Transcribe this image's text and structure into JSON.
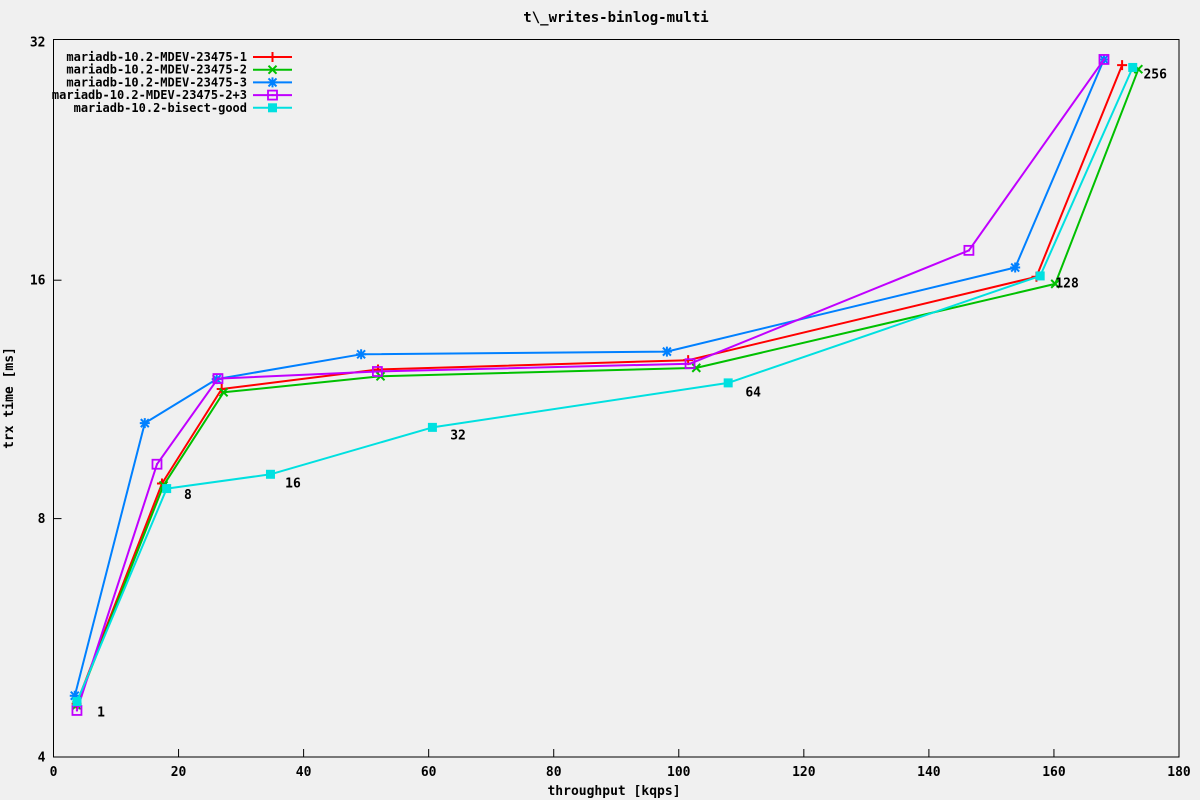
{
  "chart_data": {
    "type": "line",
    "title": "t\\_writes-binlog-multi",
    "xlabel": "throughput [kqps]",
    "ylabel": "trx time [ms]",
    "background_color": "#f0f0f0",
    "border_color": "#000000",
    "legend_position": "top-left",
    "grid": false,
    "x_axis": {
      "min": 0,
      "max": 180,
      "ticks": [
        0,
        20,
        40,
        60,
        80,
        100,
        120,
        140,
        160,
        180
      ]
    },
    "y_axis": {
      "scale": "log2",
      "min": 4,
      "max": 32.8,
      "ticks": [
        4,
        8,
        16,
        32
      ]
    },
    "series": [
      {
        "name": "mariadb-10.2-MDEV-23475-1",
        "color": "#ff0000",
        "marker": "plus",
        "points": [
          [
            3.7,
            4.67
          ],
          [
            17.35,
            8.86
          ],
          [
            26.9,
            11.66
          ],
          [
            51.9,
            12.34
          ],
          [
            101.5,
            12.68
          ],
          [
            157.2,
            16.16
          ],
          [
            170.9,
            29.9
          ]
        ]
      },
      {
        "name": "mariadb-10.2-MDEV-23475-2",
        "color": "#00c000",
        "marker": "cross",
        "points": [
          [
            3.7,
            4.65
          ],
          [
            17.6,
            8.81
          ],
          [
            27.2,
            11.55
          ],
          [
            52.3,
            12.1
          ],
          [
            102.8,
            12.4
          ],
          [
            160.2,
            15.83
          ],
          [
            173.5,
            29.55
          ]
        ]
      },
      {
        "name": "mariadb-10.2-MDEV-23475-3",
        "color": "#0080ff",
        "marker": "asterisk",
        "points": [
          [
            3.4,
            4.78
          ],
          [
            14.6,
            10.56
          ],
          [
            26.1,
            12.0
          ],
          [
            49.2,
            12.9
          ],
          [
            98.1,
            13.0
          ],
          [
            153.8,
            16.6
          ],
          [
            168.0,
            30.4
          ]
        ]
      },
      {
        "name": "mariadb-10.2-MDEV-23475-2+3",
        "color": "#c000ff",
        "marker": "open-square",
        "points": [
          [
            3.75,
            4.58
          ],
          [
            16.55,
            9.37
          ],
          [
            26.3,
            12.02
          ],
          [
            51.8,
            12.27
          ],
          [
            101.8,
            12.55
          ],
          [
            146.4,
            17.45
          ],
          [
            168.0,
            30.4
          ]
        ]
      },
      {
        "name": "mariadb-10.2-bisect-good",
        "color": "#00e0e0",
        "marker": "filled-square",
        "points": [
          [
            3.76,
            4.7
          ],
          [
            18.1,
            8.73
          ],
          [
            34.7,
            9.1
          ],
          [
            60.6,
            10.43
          ],
          [
            107.9,
            11.87
          ],
          [
            157.8,
            16.2
          ],
          [
            172.6,
            29.7
          ]
        ]
      }
    ],
    "point_labels": [
      {
        "text": "1",
        "x": 7.6,
        "y": 4.56
      },
      {
        "text": "8",
        "x": 21.5,
        "y": 8.58
      },
      {
        "text": "16",
        "x": 38.3,
        "y": 8.87
      },
      {
        "text": "32",
        "x": 64.7,
        "y": 10.2
      },
      {
        "text": "64",
        "x": 111.9,
        "y": 11.56
      },
      {
        "text": "128",
        "x": 162.1,
        "y": 15.87
      },
      {
        "text": "256",
        "x": 176.2,
        "y": 29.15
      }
    ]
  }
}
